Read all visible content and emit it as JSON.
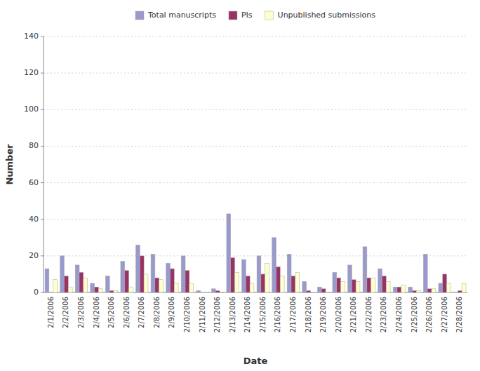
{
  "chart_data": {
    "type": "bar",
    "xlabel": "Date",
    "ylabel": "Number",
    "categories": [
      "2/1/2006",
      "2/2/2006",
      "2/3/2006",
      "2/4/2006",
      "2/5/2006",
      "2/6/2006",
      "2/7/2006",
      "2/8/2006",
      "2/9/2006",
      "2/10/2006",
      "2/11/2006",
      "2/12/2006",
      "2/13/2006",
      "2/14/2006",
      "2/15/2006",
      "2/16/2006",
      "2/17/2006",
      "2/18/2006",
      "2/19/2006",
      "2/20/2006",
      "2/21/2006",
      "2/22/2006",
      "2/23/2006",
      "2/24/2006",
      "2/25/2006",
      "2/26/2006",
      "2/27/2006",
      "2/28/2006"
    ],
    "series": [
      {
        "name": "Total manuscripts",
        "color": "#9999cc",
        "values": [
          13,
          20,
          15,
          5,
          9,
          17,
          26,
          21,
          16,
          20,
          1,
          2,
          43,
          18,
          20,
          30,
          21,
          6,
          3,
          11,
          15,
          25,
          13,
          3,
          3,
          21,
          5,
          0
        ]
      },
      {
        "name": "PIs",
        "color": "#993366",
        "values": [
          0,
          9,
          11,
          3,
          1,
          12,
          20,
          8,
          13,
          12,
          0,
          1,
          19,
          9,
          10,
          14,
          9,
          1,
          2,
          8,
          7,
          8,
          9,
          3,
          1,
          2,
          10,
          1
        ]
      },
      {
        "name": "Unpublished submissions",
        "color": "#ffffcc",
        "values": [
          7,
          3,
          8,
          2,
          1,
          3,
          10,
          7,
          5,
          5,
          0,
          0,
          11,
          5,
          16,
          9,
          11,
          0,
          0,
          6,
          6,
          8,
          6,
          4,
          1,
          2,
          5,
          5
        ]
      }
    ],
    "ylim": [
      0,
      140
    ],
    "yticks": [
      0,
      20,
      40,
      60,
      80,
      100,
      120,
      140
    ],
    "grid": true,
    "legend": "top"
  }
}
